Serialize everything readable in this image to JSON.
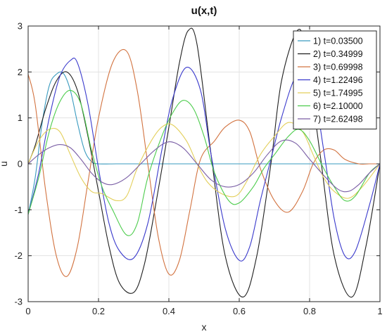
{
  "chart_data": {
    "type": "line",
    "title": "u(x,t)",
    "xlabel": "x",
    "ylabel": "u",
    "xlim": [
      0,
      1
    ],
    "ylim": [
      -3,
      3
    ],
    "xticks": [
      "0",
      "0.2",
      "0.4",
      "0.6",
      "0.8",
      "1"
    ],
    "yticks": [
      "-3",
      "-2",
      "-1",
      "0",
      "1",
      "2",
      "3"
    ],
    "grid": true,
    "legend_position": "top-right",
    "series": [
      {
        "name": "1) t=0.03500",
        "color": "#3a9bbf",
        "x": [
          0,
          0.02,
          0.04,
          0.06,
          0.08,
          0.1,
          0.12,
          0.14,
          0.16,
          0.18,
          0.2,
          0.25,
          0.3,
          0.4,
          0.5,
          0.6,
          0.7,
          0.8,
          0.9,
          1.0
        ],
        "y": [
          -1.1,
          -0.3,
          0.9,
          1.7,
          1.95,
          1.97,
          1.6,
          0.9,
          0.3,
          0.05,
          0.0,
          0.0,
          0.0,
          0.0,
          0.0,
          0.0,
          0.0,
          0.0,
          0.0,
          0.0
        ]
      },
      {
        "name": "2) t=0.34999",
        "color": "#1f1f1f",
        "x": [
          0,
          0.02,
          0.05,
          0.08,
          0.11,
          0.14,
          0.17,
          0.2,
          0.23,
          0.26,
          0.3,
          0.33,
          0.36,
          0.4,
          0.43,
          0.455,
          0.48,
          0.52,
          0.56,
          0.61,
          0.65,
          0.69,
          0.72,
          0.765,
          0.79,
          0.83,
          0.87,
          0.92,
          0.96,
          1.0
        ],
        "y": [
          0.0,
          0.4,
          1.2,
          1.8,
          2.0,
          1.6,
          0.6,
          -0.6,
          -1.8,
          -2.6,
          -2.8,
          -2.2,
          -1.0,
          0.8,
          2.2,
          2.9,
          2.6,
          0.2,
          -2.0,
          -2.9,
          -2.0,
          0.0,
          1.8,
          2.9,
          2.4,
          0.2,
          -2.0,
          -2.9,
          -1.8,
          0.0
        ]
      },
      {
        "name": "3) t=0.69998",
        "color": "#d27340",
        "x": [
          0,
          0.02,
          0.05,
          0.08,
          0.11,
          0.14,
          0.17,
          0.2,
          0.24,
          0.28,
          0.31,
          0.34,
          0.37,
          0.4,
          0.43,
          0.46,
          0.49,
          0.53,
          0.56,
          0.6,
          0.63,
          0.66,
          0.7,
          0.74,
          0.78,
          0.81,
          0.84,
          0.87,
          0.9,
          0.94,
          0.97,
          1.0
        ],
        "y": [
          1.95,
          1.3,
          -0.6,
          -2.0,
          -2.45,
          -1.8,
          -0.4,
          1.0,
          2.2,
          2.45,
          1.6,
          0.0,
          -1.6,
          -2.4,
          -2.1,
          -1.0,
          0.1,
          0.5,
          0.8,
          0.95,
          0.7,
          -0.1,
          -0.8,
          -1.05,
          -0.6,
          0.0,
          0.3,
          0.3,
          0.1,
          0.0,
          0.0,
          0.0
        ]
      },
      {
        "name": "4) t=1.22496",
        "color": "#3a3acc",
        "x": [
          0,
          0.03,
          0.06,
          0.09,
          0.12,
          0.14,
          0.17,
          0.2,
          0.23,
          0.26,
          0.3,
          0.34,
          0.38,
          0.41,
          0.45,
          0.49,
          0.52,
          0.56,
          0.6,
          0.63,
          0.66,
          0.69,
          0.72,
          0.76,
          0.8,
          0.84,
          0.87,
          0.9,
          0.93,
          0.97,
          1.0
        ],
        "y": [
          -1.1,
          -0.2,
          1.0,
          1.9,
          2.25,
          2.2,
          1.3,
          -0.1,
          -1.3,
          -1.9,
          -2.05,
          -1.3,
          0.3,
          1.4,
          2.1,
          1.6,
          0.2,
          -1.4,
          -2.1,
          -1.8,
          -0.8,
          0.1,
          1.0,
          1.9,
          2.1,
          0.3,
          -1.2,
          -2.0,
          -1.9,
          -0.9,
          0.0
        ]
      },
      {
        "name": "5) t=1.74995",
        "color": "#e3cf5a",
        "x": [
          0,
          0.03,
          0.06,
          0.09,
          0.12,
          0.15,
          0.18,
          0.21,
          0.25,
          0.28,
          0.31,
          0.35,
          0.38,
          0.41,
          0.45,
          0.48,
          0.51,
          0.55,
          0.59,
          0.62,
          0.66,
          0.7,
          0.74,
          0.78,
          0.81,
          0.84,
          0.87,
          0.91,
          0.95,
          1.0
        ],
        "y": [
          0.0,
          0.5,
          0.75,
          0.7,
          0.2,
          -0.3,
          -0.6,
          -0.65,
          -0.8,
          -0.7,
          -0.1,
          0.5,
          0.8,
          0.85,
          0.5,
          0.0,
          -0.4,
          -0.65,
          -0.7,
          -0.4,
          0.2,
          0.6,
          0.9,
          0.7,
          0.2,
          -0.3,
          -0.6,
          -0.75,
          -0.5,
          0.0
        ]
      },
      {
        "name": "6) t=2.10000",
        "color": "#4ccc4c",
        "x": [
          0,
          0.03,
          0.06,
          0.09,
          0.12,
          0.15,
          0.18,
          0.21,
          0.24,
          0.28,
          0.31,
          0.34,
          0.38,
          0.41,
          0.44,
          0.47,
          0.5,
          0.53,
          0.57,
          0.6,
          0.64,
          0.67,
          0.7,
          0.74,
          0.77,
          0.8,
          0.84,
          0.87,
          0.9,
          0.93,
          0.97,
          1.0
        ],
        "y": [
          -1.1,
          -0.3,
          0.7,
          1.35,
          1.6,
          1.3,
          0.3,
          -0.5,
          -1.0,
          -1.55,
          -1.3,
          -0.3,
          0.6,
          1.1,
          1.38,
          1.2,
          0.6,
          -0.2,
          -0.8,
          -0.85,
          -0.5,
          -0.1,
          0.2,
          0.6,
          0.75,
          0.5,
          -0.1,
          -0.5,
          -0.8,
          -0.7,
          -0.2,
          0.0
        ]
      },
      {
        "name": "7) t=2.62498",
        "color": "#7a5ea5",
        "x": [
          0,
          0.03,
          0.06,
          0.09,
          0.12,
          0.15,
          0.18,
          0.21,
          0.24,
          0.28,
          0.32,
          0.36,
          0.4,
          0.44,
          0.48,
          0.52,
          0.56,
          0.6,
          0.64,
          0.68,
          0.72,
          0.76,
          0.8,
          0.84,
          0.88,
          0.91,
          0.94,
          0.97,
          1.0
        ],
        "y": [
          0.0,
          0.2,
          0.35,
          0.42,
          0.35,
          0.1,
          -0.2,
          -0.4,
          -0.45,
          -0.3,
          0.0,
          0.3,
          0.48,
          0.35,
          0.0,
          -0.35,
          -0.5,
          -0.45,
          -0.2,
          0.2,
          0.5,
          0.45,
          0.1,
          -0.25,
          -0.55,
          -0.6,
          -0.45,
          -0.2,
          0.0
        ]
      }
    ]
  }
}
